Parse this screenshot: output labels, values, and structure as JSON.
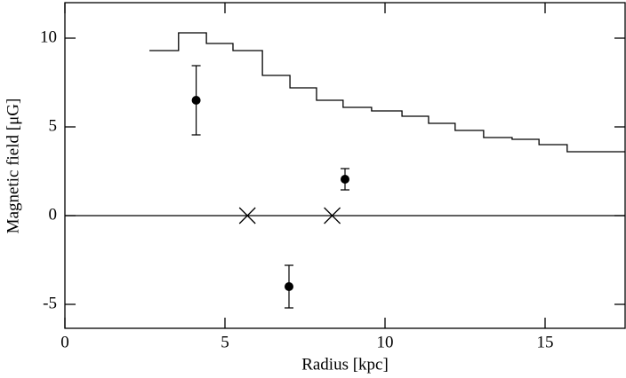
{
  "chart_data": {
    "type": "scatter",
    "xlabel": "Radius [kpc]",
    "ylabel": "Magnetic field [μG]",
    "xlim": [
      0,
      17.5
    ],
    "ylim": [
      -6.35,
      12
    ],
    "xticks": [
      0,
      5,
      10,
      15
    ],
    "yticks": [
      -5,
      0,
      5,
      10
    ],
    "hline": 0,
    "series": [
      {
        "type": "step",
        "color": "#000000",
        "x": [
          2.64,
          3.55,
          4.42,
          5.25,
          6.17,
          7.03,
          7.86,
          8.69,
          9.58,
          10.53,
          11.36,
          12.19,
          13.08,
          13.97,
          14.81,
          15.69
        ],
        "values": [
          9.3,
          10.3,
          9.7,
          9.3,
          7.9,
          7.2,
          6.5,
          6.1,
          5.9,
          5.6,
          5.2,
          4.8,
          4.4,
          4.3,
          4.0,
          3.6
        ]
      },
      {
        "type": "errorbar",
        "color": "#000000",
        "x": [
          4.1,
          8.75,
          7.0
        ],
        "values": [
          6.5,
          2.05,
          -4.0
        ],
        "errors": [
          1.95,
          0.6,
          1.2
        ]
      },
      {
        "type": "cross",
        "color": "#000000",
        "x": [
          5.7,
          8.35
        ],
        "values": [
          0,
          0
        ]
      }
    ]
  }
}
